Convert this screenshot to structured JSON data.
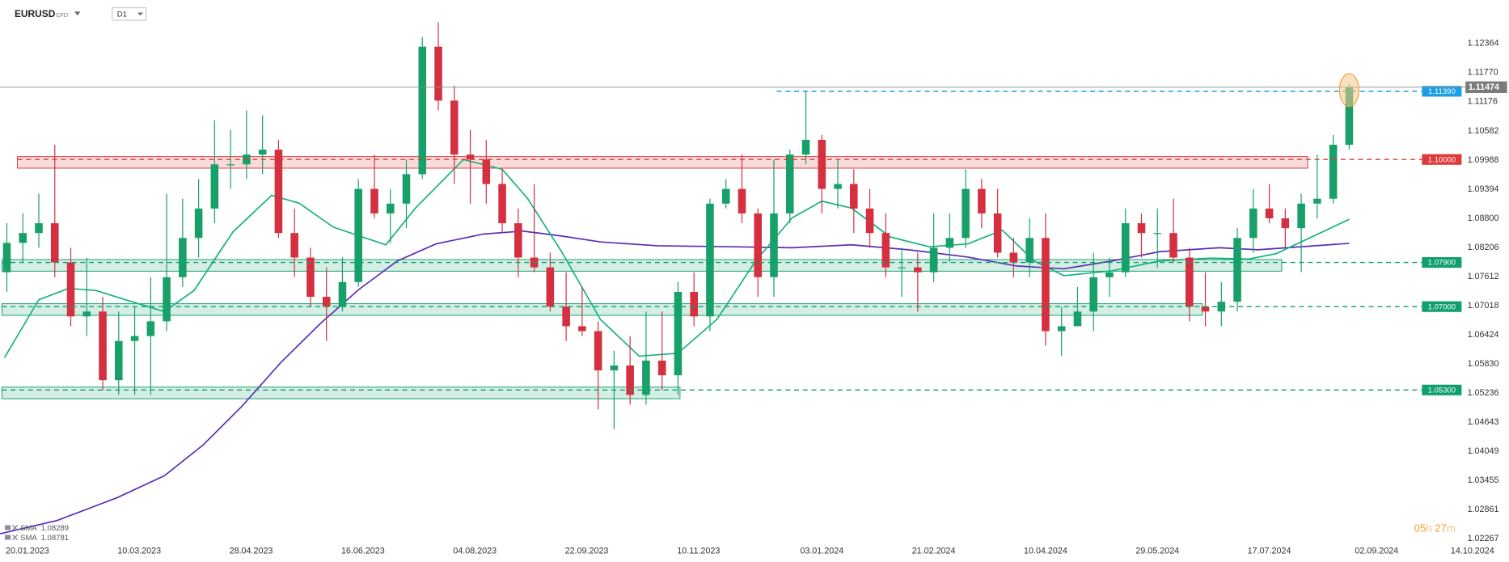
{
  "chart_data": {
    "type": "candlestick",
    "title": "EURUSD",
    "instrument_type": "CFD",
    "interval": "D1",
    "timer": {
      "hours": "05",
      "h": "h",
      "minutes": "27",
      "m": "m"
    },
    "xlim": [
      "08.01.2023",
      "30.10.2024"
    ],
    "xticks": [
      "20.01.2023",
      "10.03.2023",
      "28.04.2023",
      "16.06.2023",
      "04.08.2023",
      "22.09.2023",
      "10.11.2023",
      "03.01.2024",
      "21.02.2024",
      "10.04.2024",
      "29.05.2024",
      "17.07.2024",
      "02.09.2024",
      "14.10.2024"
    ],
    "ylim": [
      1.01912,
      1.13251
    ],
    "yticks": [
      1.12364,
      {
        "value": 1.1177,
        "label": "1.11770"
      },
      1.11176,
      1.10582,
      1.09988,
      1.09394,
      {
        "value": 1.088,
        "label": "1.08800"
      },
      1.08206,
      1.07612,
      1.07018,
      1.06424,
      {
        "value": 1.0583,
        "label": "1.05830"
      },
      1.05236,
      1.04643,
      1.04049,
      1.03455,
      1.02861,
      1.02267
    ],
    "grid": false,
    "up_color": "#17a06a",
    "down_color": "#d4303f",
    "x": [
      "11.01.2023",
      "18.01.2023",
      "25.01.2023",
      "01.02.2023",
      "08.02.2023",
      "15.02.2023",
      "22.02.2023",
      "01.03.2023",
      "08.03.2023",
      "15.03.2023",
      "22.03.2023",
      "29.03.2023",
      "05.04.2023",
      "12.04.2023",
      "19.04.2023",
      "26.04.2023",
      "03.05.2023",
      "10.05.2023",
      "17.05.2023",
      "24.05.2023",
      "31.05.2023",
      "07.06.2023",
      "14.06.2023",
      "21.06.2023",
      "28.06.2023",
      "05.07.2023",
      "12.07.2023",
      "19.07.2023",
      "26.07.2023",
      "02.08.2023",
      "09.08.2023",
      "16.08.2023",
      "23.08.2023",
      "30.08.2023",
      "06.09.2023",
      "13.09.2023",
      "20.09.2023",
      "27.09.2023",
      "04.10.2023",
      "11.10.2023",
      "18.10.2023",
      "25.10.2023",
      "01.11.2023",
      "08.11.2023",
      "15.11.2023",
      "22.11.2023",
      "29.11.2023",
      "06.12.2023",
      "13.12.2023",
      "20.12.2023",
      "27.12.2023",
      "03.01.2024",
      "10.01.2024",
      "17.01.2024",
      "24.01.2024",
      "31.01.2024",
      "07.02.2024",
      "14.02.2024",
      "21.02.2024",
      "28.02.2024",
      "06.03.2024",
      "13.03.2024",
      "20.03.2024",
      "27.03.2024",
      "03.04.2024",
      "10.04.2024",
      "17.04.2024",
      "24.04.2024",
      "01.05.2024",
      "08.05.2024",
      "15.05.2024",
      "22.05.2024",
      "29.05.2024",
      "05.06.2024",
      "12.06.2024",
      "19.06.2024",
      "26.06.2024",
      "03.07.2024",
      "10.07.2024",
      "17.07.2024",
      "24.07.2024",
      "31.07.2024",
      "07.08.2024",
      "14.08.2024",
      "21.08.2024"
    ],
    "open": [
      1.077,
      1.083,
      1.085,
      1.087,
      1.079,
      1.068,
      1.069,
      1.055,
      1.063,
      1.064,
      1.067,
      1.076,
      1.084,
      1.09,
      1.099,
      1.099,
      1.101,
      1.102,
      1.085,
      1.08,
      1.072,
      1.07,
      1.075,
      1.094,
      1.089,
      1.091,
      1.097,
      1.123,
      1.112,
      1.101,
      1.1,
      1.095,
      1.087,
      1.08,
      1.078,
      1.07,
      1.066,
      1.065,
      1.057,
      1.058,
      1.052,
      1.059,
      1.056,
      1.073,
      1.068,
      1.091,
      1.094,
      1.089,
      1.076,
      1.089,
      1.101,
      1.104,
      1.094,
      1.095,
      1.09,
      1.085,
      1.078,
      1.078,
      1.077,
      1.082,
      1.084,
      1.094,
      1.089,
      1.081,
      1.079,
      1.084,
      1.065,
      1.066,
      1.069,
      1.076,
      1.077,
      1.087,
      1.085,
      1.085,
      1.08,
      1.07,
      1.069,
      1.071,
      1.084,
      1.09,
      1.088,
      1.086,
      1.091,
      1.092,
      1.103
    ],
    "high": [
      1.087,
      1.089,
      1.093,
      1.103,
      1.082,
      1.08,
      1.072,
      1.069,
      1.07,
      1.076,
      1.093,
      1.092,
      1.096,
      1.108,
      1.106,
      1.11,
      1.109,
      1.104,
      1.09,
      1.082,
      1.078,
      1.08,
      1.096,
      1.101,
      1.094,
      1.1,
      1.125,
      1.128,
      1.115,
      1.106,
      1.104,
      1.098,
      1.09,
      1.095,
      1.081,
      1.077,
      1.074,
      1.067,
      1.061,
      1.064,
      1.069,
      1.069,
      1.075,
      1.077,
      1.092,
      1.096,
      1.101,
      1.09,
      1.1,
      1.102,
      1.114,
      1.105,
      1.1,
      1.098,
      1.094,
      1.089,
      1.082,
      1.081,
      1.089,
      1.089,
      1.098,
      1.096,
      1.094,
      1.084,
      1.088,
      1.089,
      1.07,
      1.074,
      1.081,
      1.08,
      1.09,
      1.089,
      1.09,
      1.092,
      1.082,
      1.077,
      1.075,
      1.086,
      1.094,
      1.095,
      1.09,
      1.093,
      1.101,
      1.105,
      1.1154
    ],
    "low": [
      1.073,
      1.079,
      1.082,
      1.076,
      1.066,
      1.064,
      1.053,
      1.052,
      1.052,
      1.052,
      1.065,
      1.074,
      1.08,
      1.087,
      1.094,
      1.096,
      1.097,
      1.084,
      1.076,
      1.07,
      1.063,
      1.069,
      1.074,
      1.088,
      1.083,
      1.086,
      1.096,
      1.11,
      1.095,
      1.091,
      1.091,
      1.085,
      1.076,
      1.077,
      1.069,
      1.063,
      1.064,
      1.049,
      1.045,
      1.05,
      1.05,
      1.053,
      1.052,
      1.066,
      1.065,
      1.09,
      1.087,
      1.072,
      1.072,
      1.087,
      1.099,
      1.089,
      1.09,
      1.085,
      1.082,
      1.076,
      1.072,
      1.069,
      1.075,
      1.079,
      1.082,
      1.086,
      1.08,
      1.076,
      1.076,
      1.062,
      1.06,
      1.066,
      1.065,
      1.072,
      1.076,
      1.08,
      1.078,
      1.079,
      1.067,
      1.066,
      1.066,
      1.069,
      1.081,
      1.087,
      1.082,
      1.077,
      1.088,
      1.091,
      1.102
    ],
    "close": [
      1.083,
      1.085,
      1.087,
      1.079,
      1.068,
      1.069,
      1.055,
      1.063,
      1.064,
      1.067,
      1.076,
      1.084,
      1.09,
      1.099,
      1.099,
      1.101,
      1.102,
      1.085,
      1.08,
      1.072,
      1.07,
      1.075,
      1.094,
      1.089,
      1.091,
      1.097,
      1.123,
      1.112,
      1.101,
      1.1,
      1.095,
      1.087,
      1.08,
      1.078,
      1.07,
      1.066,
      1.065,
      1.057,
      1.058,
      1.052,
      1.059,
      1.056,
      1.073,
      1.068,
      1.091,
      1.094,
      1.089,
      1.076,
      1.089,
      1.101,
      1.104,
      1.094,
      1.095,
      1.09,
      1.085,
      1.078,
      1.078,
      1.077,
      1.082,
      1.084,
      1.094,
      1.089,
      1.081,
      1.079,
      1.084,
      1.065,
      1.066,
      1.069,
      1.076,
      1.077,
      1.087,
      1.085,
      1.085,
      1.08,
      1.07,
      1.069,
      1.071,
      1.084,
      1.09,
      1.088,
      1.086,
      1.091,
      1.092,
      1.103,
      1.11474
    ],
    "series": [
      {
        "name": "SMA",
        "color": "#5a2db5",
        "x": [
          "08.01.2023",
          "02.02.2023",
          "28.02.2023",
          "21.03.2023",
          "07.04.2023",
          "24.04.2023",
          "11.05.2023",
          "28.05.2023",
          "14.06.2023",
          "01.07.2023",
          "18.07.2023",
          "08.08.2023",
          "25.08.2023",
          "11.09.2023",
          "28.09.2023",
          "23.10.2023",
          "26.11.2023",
          "21.12.2023",
          "16.01.2024",
          "10.02.2024",
          "07.03.2024",
          "28.03.2024",
          "18.04.2024",
          "09.05.2024",
          "30.05.2024",
          "25.06.2024",
          "12.07.2024",
          "21.08.2024"
        ],
        "values": [
          1.0237,
          1.0264,
          1.031,
          1.0355,
          1.0418,
          1.0497,
          1.0586,
          1.0664,
          1.0734,
          1.0793,
          1.0828,
          1.0848,
          1.0854,
          1.0844,
          1.0832,
          1.0824,
          1.0822,
          1.082,
          1.0826,
          1.0816,
          1.0801,
          1.0783,
          1.0777,
          1.0793,
          1.0812,
          1.082,
          1.0816,
          1.08289
        ]
      },
      {
        "name": "SMA",
        "color": "#13b27a",
        "x": [
          "10.01.2023",
          "25.01.2023",
          "07.02.2023",
          "19.02.2023",
          "04.03.2023",
          "21.03.2023",
          "03.04.2023",
          "20.04.2023",
          "07.05.2023",
          "19.05.2023",
          "03.06.2023",
          "26.06.2023",
          "09.07.2023",
          "30.07.2023",
          "16.08.2023",
          "27.08.2023",
          "11.09.2023",
          "28.09.2023",
          "15.10.2023",
          "01.11.2023",
          "18.11.2023",
          "05.12.2023",
          "21.12.2023",
          "03.01.2024",
          "16.01.2024",
          "02.02.2024",
          "19.02.2024",
          "07.03.2024",
          "22.03.2024",
          "05.04.2024",
          "18.04.2024",
          "09.05.2024",
          "30.05.2024",
          "21.06.2024",
          "08.07.2024",
          "20.07.2024",
          "21.08.2024"
        ],
        "values": [
          1.0596,
          1.0714,
          1.0737,
          1.0733,
          1.0714,
          1.069,
          1.0733,
          1.0852,
          1.0927,
          1.0911,
          1.0862,
          1.0826,
          1.0901,
          1.1,
          1.098,
          1.0921,
          1.0812,
          1.0674,
          1.0599,
          1.0605,
          1.0674,
          1.0793,
          1.0881,
          1.0915,
          1.0901,
          1.0842,
          1.0822,
          1.0828,
          1.0856,
          1.0793,
          1.0763,
          1.0773,
          1.0793,
          1.0799,
          1.0797,
          1.0808,
          1.08781
        ]
      }
    ],
    "levels": [
      {
        "value": 1.1139,
        "label": "1.11390",
        "color": "#1a9fe6"
      },
      {
        "value": 1.1,
        "label": "1.10000",
        "color": "#e03a3a"
      },
      {
        "value": 1.079,
        "label": "1.07900",
        "color": "#0f9f6c"
      },
      {
        "value": 1.07,
        "label": "1.07000",
        "color": "#0f9f6c"
      },
      {
        "value": 1.053,
        "label": "1.05300",
        "color": "#0f9f6c"
      }
    ]
  }
}
